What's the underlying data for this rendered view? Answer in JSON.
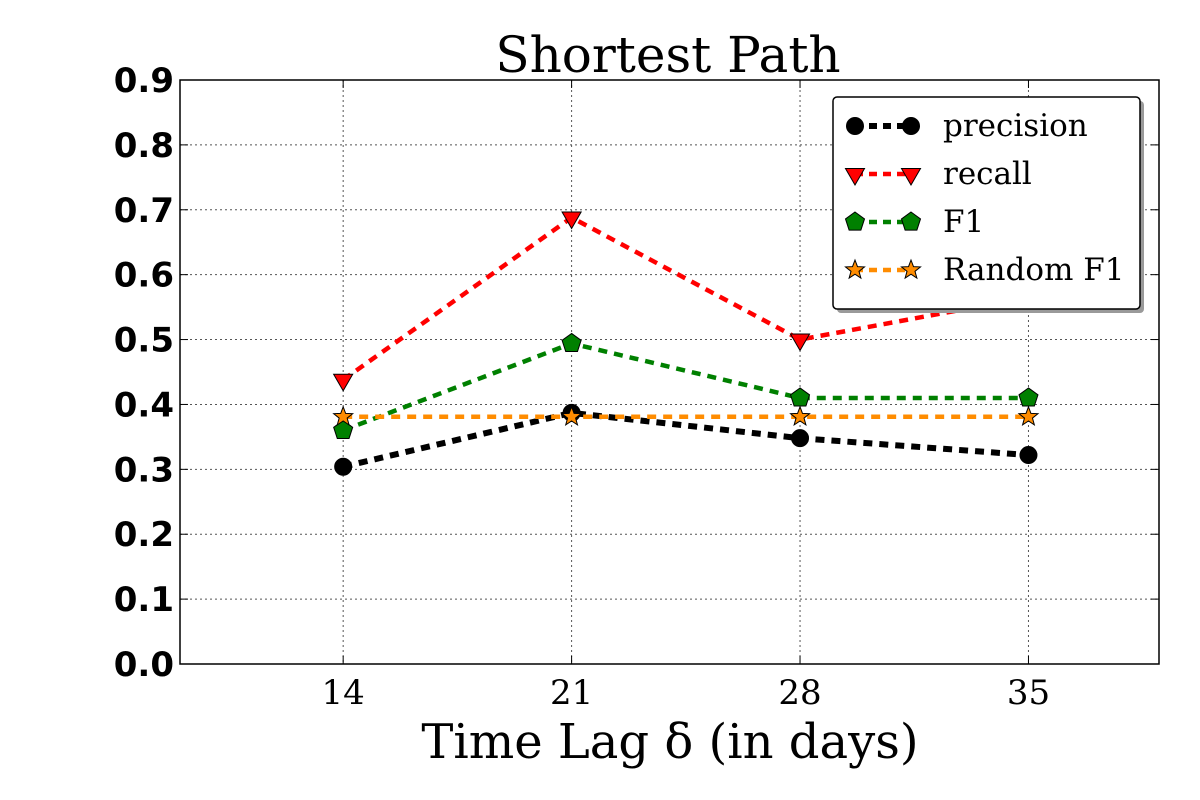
{
  "chart_data": {
    "type": "line",
    "title": "Shortest Path",
    "xlabel": "Time Lag δ (in days)",
    "ylabel": "",
    "x": [
      14,
      21,
      28,
      35
    ],
    "xtick_labels": [
      "14",
      "21",
      "28",
      "35"
    ],
    "xlim": [
      9,
      39
    ],
    "ylim": [
      0,
      0.9
    ],
    "yticks": [
      "0.0",
      "0.1",
      "0.2",
      "0.3",
      "0.4",
      "0.5",
      "0.6",
      "0.7",
      "0.8",
      "0.9"
    ],
    "grid": true,
    "legend_position": "top-right",
    "series": [
      {
        "name": "precision",
        "values": [
          0.304,
          0.387,
          0.348,
          0.322
        ],
        "color": "#000000",
        "marker": "circle"
      },
      {
        "name": "recall",
        "values": [
          0.438,
          0.688,
          0.5,
          0.565
        ],
        "color": "#ff0000",
        "marker": "triangle-down"
      },
      {
        "name": "F1",
        "values": [
          0.36,
          0.494,
          0.41,
          0.41
        ],
        "color": "#008000",
        "marker": "pentagon"
      },
      {
        "name": "Random F1",
        "values": [
          0.381,
          0.381,
          0.381,
          0.381
        ],
        "color": "#ff8c00",
        "marker": "star"
      }
    ]
  }
}
